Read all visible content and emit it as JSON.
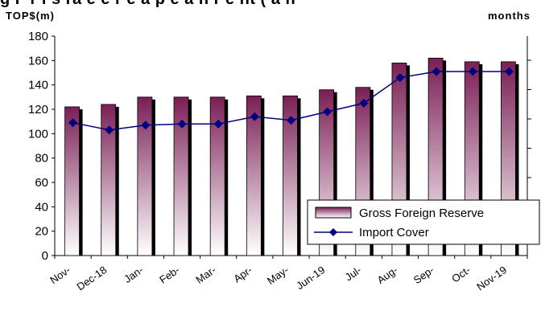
{
  "chart_data": {
    "type": "bar",
    "title_fragment": "g  F  r   i     s    ra  e      e   r  e  a  p  e  a   n   r  e   nt  (   a  n",
    "ylabel": "TOP$(m)",
    "y2label": "months",
    "ylim": [
      0,
      180
    ],
    "yticks": [
      "0",
      "20",
      "40",
      "60",
      "80",
      "100",
      "120",
      "140",
      "160",
      "180"
    ],
    "categories": [
      "Nov-",
      "Dec-18",
      "Jan-",
      "Feb-",
      "Mar-",
      "Apr-",
      "May-",
      "Jun-19",
      "Jul-",
      "Aug-",
      "Sep-",
      "Oct-",
      "Nov-19"
    ],
    "series": [
      {
        "name": "Gross Foreign Reserve",
        "kind": "bar",
        "color": "#7a1f55",
        "values": [
          122,
          124,
          130,
          130,
          130,
          131,
          131,
          136,
          138,
          158,
          162,
          159,
          159
        ]
      },
      {
        "name": "Import Cover",
        "kind": "line",
        "color": "#000080",
        "values": [
          109,
          103,
          107,
          108,
          108,
          114,
          111,
          118,
          125,
          146,
          151,
          151,
          151
        ]
      }
    ],
    "legend": {
      "placement": "bottom-right"
    },
    "grid": false
  }
}
